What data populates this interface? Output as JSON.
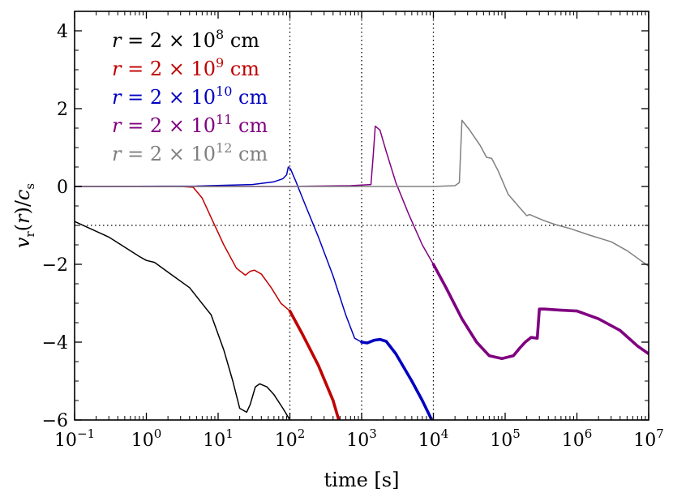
{
  "chart_data": {
    "type": "line",
    "xscale": "log",
    "xlim": [
      0.1,
      10000000
    ],
    "ylim": [
      -6,
      4.5
    ],
    "xlabel": "time [s]",
    "ylabel": "v_r(r)/c_s",
    "x_ticks": [
      {
        "value": 0.1,
        "base": "10",
        "exp": "−1"
      },
      {
        "value": 1,
        "base": "10",
        "exp": "0"
      },
      {
        "value": 10,
        "base": "10",
        "exp": "1"
      },
      {
        "value": 100,
        "base": "10",
        "exp": "2"
      },
      {
        "value": 1000,
        "base": "10",
        "exp": "3"
      },
      {
        "value": 10000,
        "base": "10",
        "exp": "4"
      },
      {
        "value": 100000,
        "base": "10",
        "exp": "5"
      },
      {
        "value": 1000000,
        "base": "10",
        "exp": "6"
      },
      {
        "value": 10000000,
        "base": "10",
        "exp": "7"
      }
    ],
    "y_ticks": [
      {
        "value": -6,
        "label": "−6"
      },
      {
        "value": -4,
        "label": "−4"
      },
      {
        "value": -2,
        "label": "−2"
      },
      {
        "value": 0,
        "label": "0"
      },
      {
        "value": 2,
        "label": "2"
      },
      {
        "value": 4,
        "label": "4"
      }
    ],
    "reference_lines": {
      "vertical": [
        100,
        1000,
        10000
      ],
      "horizontal": [
        -1
      ]
    },
    "series": [
      {
        "name": "r = 2 × 10^8 cm",
        "legend_prefix": "r",
        "legend_eq": " = 2 × 10",
        "legend_exp": "8",
        "legend_unit": " cm",
        "color": "#000000",
        "thin": [
          [
            0.1,
            -0.9
          ],
          [
            0.3,
            -1.3
          ],
          [
            0.8,
            -1.8
          ],
          [
            1,
            -1.9
          ],
          [
            1.3,
            -1.95
          ],
          [
            2,
            -2.2
          ],
          [
            4,
            -2.6
          ],
          [
            8,
            -3.3
          ],
          [
            12,
            -4.2
          ],
          [
            16,
            -5.0
          ],
          [
            20,
            -5.7
          ],
          [
            25,
            -5.8
          ],
          [
            28,
            -5.6
          ],
          [
            33,
            -5.15
          ],
          [
            38,
            -5.07
          ],
          [
            48,
            -5.15
          ],
          [
            60,
            -5.35
          ],
          [
            80,
            -5.7
          ],
          [
            100,
            -6.0
          ]
        ],
        "thick": []
      },
      {
        "name": "r = 2 × 10^9 cm",
        "legend_prefix": "r",
        "legend_eq": " = 2 × 10",
        "legend_exp": "9",
        "legend_unit": " cm",
        "color": "#c00000",
        "thin": [
          [
            0.1,
            0.0
          ],
          [
            1,
            0.0
          ],
          [
            3,
            0.0
          ],
          [
            4.5,
            -0.02
          ],
          [
            6,
            -0.3
          ],
          [
            8,
            -0.8
          ],
          [
            12,
            -1.5
          ],
          [
            18,
            -2.1
          ],
          [
            24,
            -2.28
          ],
          [
            28,
            -2.18
          ],
          [
            32,
            -2.15
          ],
          [
            40,
            -2.25
          ],
          [
            55,
            -2.6
          ],
          [
            75,
            -3.0
          ],
          [
            100,
            -3.2
          ]
        ],
        "thick": [
          [
            100,
            -3.2
          ],
          [
            150,
            -3.8
          ],
          [
            250,
            -4.6
          ],
          [
            400,
            -5.5
          ],
          [
            480,
            -6.0
          ]
        ]
      },
      {
        "name": "r = 2 × 10^10 cm",
        "legend_prefix": "r",
        "legend_eq": " = 2 × 10",
        "legend_exp": "10",
        "legend_unit": " cm",
        "color": "#0000c0",
        "thin": [
          [
            0.1,
            0.0
          ],
          [
            5,
            0.01
          ],
          [
            30,
            0.05
          ],
          [
            60,
            0.12
          ],
          [
            80,
            0.2
          ],
          [
            90,
            0.3
          ],
          [
            95,
            0.5
          ],
          [
            102,
            0.45
          ],
          [
            120,
            0.15
          ],
          [
            150,
            -0.3
          ],
          [
            250,
            -1.3
          ],
          [
            400,
            -2.3
          ],
          [
            600,
            -3.3
          ],
          [
            800,
            -3.9
          ],
          [
            1000,
            -4.0
          ]
        ],
        "thick": [
          [
            1000,
            -4.0
          ],
          [
            1200,
            -4.02
          ],
          [
            1500,
            -3.95
          ],
          [
            1800,
            -3.93
          ],
          [
            2200,
            -3.98
          ],
          [
            3000,
            -4.3
          ],
          [
            5000,
            -5.0
          ],
          [
            7000,
            -5.5
          ],
          [
            9500,
            -6.0
          ]
        ]
      },
      {
        "name": "r = 2 × 10^11 cm",
        "legend_prefix": "r",
        "legend_eq": " = 2 × 10",
        "legend_exp": "11",
        "legend_unit": " cm",
        "color": "#800080",
        "thin": [
          [
            0.1,
            0.0
          ],
          [
            100,
            0.0
          ],
          [
            700,
            0.02
          ],
          [
            1350,
            0.05
          ],
          [
            1450,
            0.8
          ],
          [
            1550,
            1.55
          ],
          [
            1800,
            1.45
          ],
          [
            2200,
            0.9
          ],
          [
            3000,
            0.1
          ],
          [
            4500,
            -0.7
          ],
          [
            7000,
            -1.5
          ],
          [
            10000,
            -2.0
          ]
        ],
        "thick": [
          [
            10000,
            -2.0
          ],
          [
            15000,
            -2.6
          ],
          [
            25000,
            -3.4
          ],
          [
            40000,
            -4.0
          ],
          [
            60000,
            -4.35
          ],
          [
            90000,
            -4.42
          ],
          [
            130000,
            -4.35
          ],
          [
            160000,
            -4.15
          ],
          [
            190000,
            -4.0
          ],
          [
            230000,
            -3.88
          ],
          [
            280000,
            -3.9
          ],
          [
            300000,
            -3.15
          ],
          [
            350000,
            -3.15
          ],
          [
            600000,
            -3.18
          ],
          [
            1000000,
            -3.2
          ],
          [
            2000000,
            -3.4
          ],
          [
            4000000,
            -3.7
          ],
          [
            7000000,
            -4.1
          ],
          [
            10000000,
            -4.3
          ]
        ]
      },
      {
        "name": "r = 2 × 10^12 cm",
        "legend_prefix": "r",
        "legend_eq": " = 2 × 10",
        "legend_exp": "12",
        "legend_unit": " cm",
        "color": "#808080",
        "thin": [
          [
            0.1,
            0.0
          ],
          [
            10000,
            0.0
          ],
          [
            20000,
            0.02
          ],
          [
            23000,
            0.1
          ],
          [
            25000,
            1.7
          ],
          [
            32000,
            1.45
          ],
          [
            45000,
            1.05
          ],
          [
            55000,
            0.75
          ],
          [
            65000,
            0.72
          ],
          [
            80000,
            0.4
          ],
          [
            110000,
            -0.2
          ],
          [
            160000,
            -0.55
          ],
          [
            200000,
            -0.75
          ],
          [
            220000,
            -0.72
          ],
          [
            260000,
            -0.78
          ],
          [
            350000,
            -0.88
          ],
          [
            500000,
            -0.98
          ],
          [
            800000,
            -1.08
          ],
          [
            1500000,
            -1.25
          ],
          [
            3000000,
            -1.42
          ],
          [
            5000000,
            -1.65
          ],
          [
            10000000,
            -2.05
          ]
        ],
        "thick": []
      }
    ]
  }
}
